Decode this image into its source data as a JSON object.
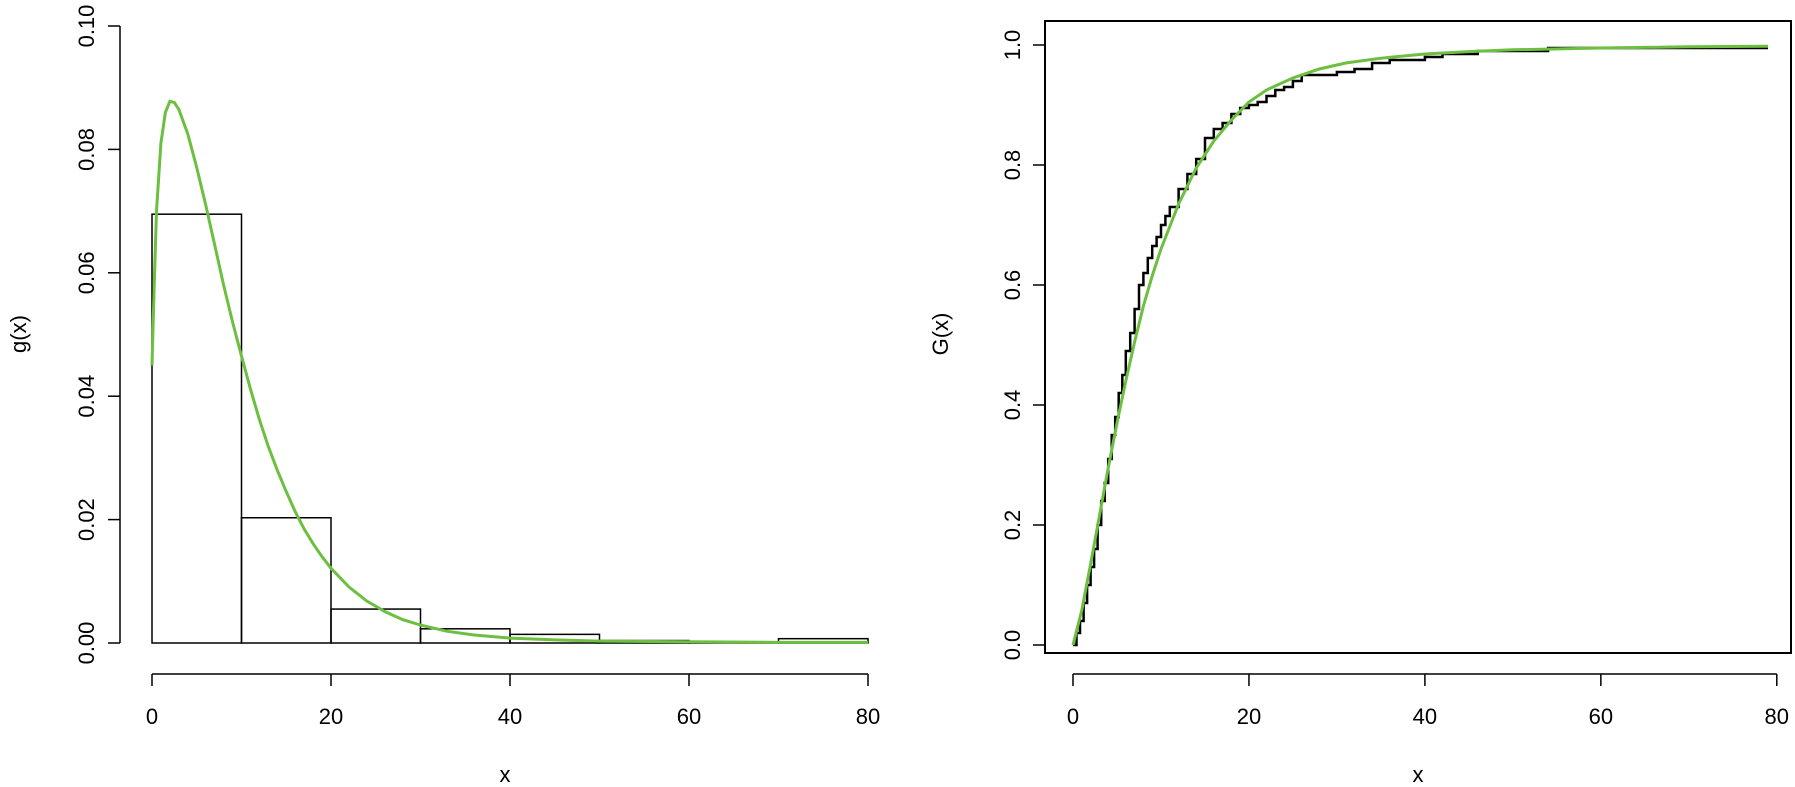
{
  "chart_data": [
    {
      "type": "histogram",
      "xlabel": "x",
      "ylabel": "g(x)",
      "xlim": [
        0,
        80
      ],
      "ylim": [
        0,
        0.1
      ],
      "x_ticks": [
        "0",
        "20",
        "40",
        "60",
        "80"
      ],
      "y_ticks": [
        "0.00",
        "0.02",
        "0.04",
        "0.06",
        "0.08",
        "0.10"
      ],
      "x_tick_values": [
        0,
        20,
        40,
        60,
        80
      ],
      "y_tick_values": [
        0,
        0.02,
        0.04,
        0.06,
        0.08,
        0.1
      ],
      "box": false,
      "bins": [
        {
          "from": 0,
          "to": 10,
          "density": 0.0695
        },
        {
          "from": 10,
          "to": 20,
          "density": 0.0203
        },
        {
          "from": 20,
          "to": 30,
          "density": 0.0055
        },
        {
          "from": 30,
          "to": 40,
          "density": 0.0023
        },
        {
          "from": 40,
          "to": 50,
          "density": 0.0014
        },
        {
          "from": 50,
          "to": 60,
          "density": 0.0004
        },
        {
          "from": 60,
          "to": 70,
          "density": 0.0002
        },
        {
          "from": 70,
          "to": 80,
          "density": 0.0007
        }
      ],
      "curve": {
        "color": "#6cbf3f",
        "points": [
          [
            0,
            0.045
          ],
          [
            0.25,
            0.058
          ],
          [
            0.5,
            0.07
          ],
          [
            1,
            0.081
          ],
          [
            1.5,
            0.086
          ],
          [
            2,
            0.0878
          ],
          [
            2.5,
            0.0876
          ],
          [
            3,
            0.0865
          ],
          [
            4,
            0.0825
          ],
          [
            5,
            0.077
          ],
          [
            6,
            0.071
          ],
          [
            7,
            0.0645
          ],
          [
            8,
            0.058
          ],
          [
            9,
            0.052
          ],
          [
            10,
            0.0465
          ],
          [
            11,
            0.0412
          ],
          [
            12,
            0.0362
          ],
          [
            13,
            0.0318
          ],
          [
            14,
            0.028
          ],
          [
            15,
            0.0245
          ],
          [
            16,
            0.0213
          ],
          [
            17,
            0.0185
          ],
          [
            18,
            0.0161
          ],
          [
            19,
            0.014
          ],
          [
            20,
            0.0121
          ],
          [
            22,
            0.0091
          ],
          [
            24,
            0.0068
          ],
          [
            26,
            0.0051
          ],
          [
            28,
            0.0038
          ],
          [
            30,
            0.0029
          ],
          [
            33,
            0.0019
          ],
          [
            36,
            0.0013
          ],
          [
            40,
            0.0008
          ],
          [
            45,
            0.0005
          ],
          [
            50,
            0.0003
          ],
          [
            60,
            0.0002
          ],
          [
            70,
            0.0001
          ],
          [
            80,
            0.0001
          ]
        ]
      }
    },
    {
      "type": "line",
      "xlabel": "x",
      "ylabel": "G(x)",
      "xlim": [
        0,
        79
      ],
      "ylim": [
        0,
        1
      ],
      "x_ticks": [
        "0",
        "20",
        "40",
        "60",
        "80"
      ],
      "y_ticks": [
        "0.0",
        "0.2",
        "0.4",
        "0.6",
        "0.8",
        "1.0"
      ],
      "x_tick_values": [
        0,
        20,
        40,
        60,
        80
      ],
      "y_tick_values": [
        0,
        0.2,
        0.4,
        0.6,
        0.8,
        1.0
      ],
      "box": true,
      "series": [
        {
          "style": "empirical-step",
          "color": "#000000",
          "points": [
            [
              0,
              0
            ],
            [
              0.4,
              0.02
            ],
            [
              0.8,
              0.04
            ],
            [
              1.2,
              0.07
            ],
            [
              1.6,
              0.1
            ],
            [
              2,
              0.13
            ],
            [
              2.4,
              0.16
            ],
            [
              2.8,
              0.2
            ],
            [
              3.2,
              0.24
            ],
            [
              3.6,
              0.27
            ],
            [
              4,
              0.31
            ],
            [
              4.4,
              0.35
            ],
            [
              4.8,
              0.38
            ],
            [
              5.2,
              0.42
            ],
            [
              5.6,
              0.45
            ],
            [
              6,
              0.49
            ],
            [
              6.5,
              0.52
            ],
            [
              7,
              0.56
            ],
            [
              7.5,
              0.6
            ],
            [
              8,
              0.62
            ],
            [
              8.5,
              0.645
            ],
            [
              9,
              0.665
            ],
            [
              9.5,
              0.68
            ],
            [
              10,
              0.7
            ],
            [
              10.5,
              0.715
            ],
            [
              11,
              0.73
            ],
            [
              12,
              0.76
            ],
            [
              13,
              0.785
            ],
            [
              14,
              0.81
            ],
            [
              15,
              0.845
            ],
            [
              16,
              0.86
            ],
            [
              17,
              0.87
            ],
            [
              18,
              0.885
            ],
            [
              19,
              0.895
            ],
            [
              20,
              0.9
            ],
            [
              21,
              0.905
            ],
            [
              22,
              0.915
            ],
            [
              23,
              0.925
            ],
            [
              24,
              0.93
            ],
            [
              25,
              0.94
            ],
            [
              26,
              0.95
            ],
            [
              28,
              0.95
            ],
            [
              30,
              0.955
            ],
            [
              32,
              0.96
            ],
            [
              34,
              0.97
            ],
            [
              36,
              0.975
            ],
            [
              38,
              0.975
            ],
            [
              40,
              0.98
            ],
            [
              42,
              0.985
            ],
            [
              44,
              0.985
            ],
            [
              46,
              0.99
            ],
            [
              50,
              0.99
            ],
            [
              54,
              0.995
            ],
            [
              60,
              0.995
            ],
            [
              79,
              0.995
            ]
          ]
        },
        {
          "style": "smooth",
          "color": "#6cbf3f",
          "points": [
            [
              0,
              0
            ],
            [
              1,
              0.058
            ],
            [
              2,
              0.135
            ],
            [
              3,
              0.215
            ],
            [
              4,
              0.295
            ],
            [
              5,
              0.37
            ],
            [
              6,
              0.44
            ],
            [
              7,
              0.505
            ],
            [
              8,
              0.565
            ],
            [
              9,
              0.615
            ],
            [
              10,
              0.66
            ],
            [
              12,
              0.735
            ],
            [
              14,
              0.795
            ],
            [
              16,
              0.84
            ],
            [
              18,
              0.875
            ],
            [
              20,
              0.905
            ],
            [
              22,
              0.925
            ],
            [
              25,
              0.945
            ],
            [
              28,
              0.96
            ],
            [
              31,
              0.97
            ],
            [
              35,
              0.978
            ],
            [
              40,
              0.985
            ],
            [
              45,
              0.989
            ],
            [
              50,
              0.992
            ],
            [
              60,
              0.995
            ],
            [
              70,
              0.997
            ],
            [
              79,
              0.998
            ]
          ]
        }
      ]
    }
  ]
}
